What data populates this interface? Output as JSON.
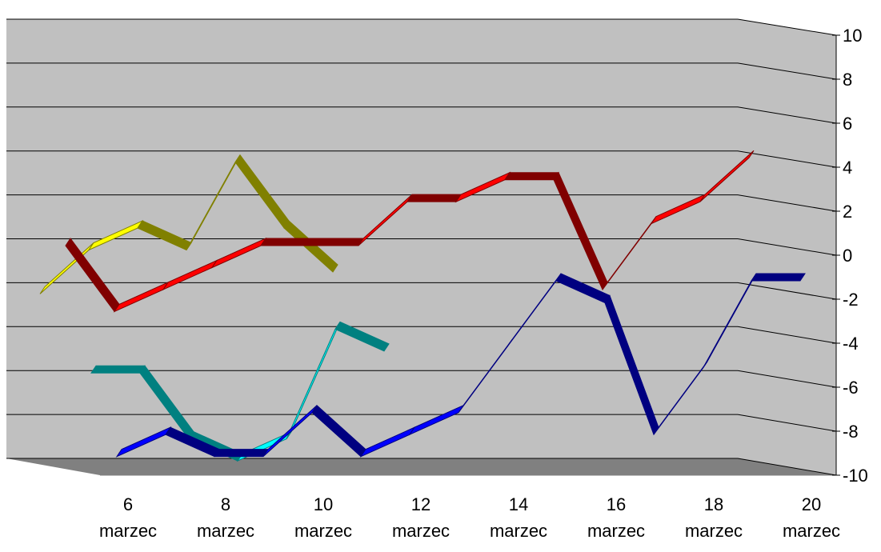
{
  "chart_data": {
    "type": "line",
    "style": "3d-ribbon",
    "ylim": [
      -10,
      10
    ],
    "yticks": [
      "10",
      "8",
      "6",
      "4",
      "2",
      "0",
      "-2",
      "-4",
      "-6",
      "-8",
      "-10"
    ],
    "yticks_values": [
      10,
      8,
      6,
      4,
      2,
      0,
      -2,
      -4,
      -6,
      -8,
      -10
    ],
    "x": [
      5,
      6,
      7,
      8,
      9,
      10,
      11,
      12,
      13,
      14,
      15,
      16,
      17,
      18,
      19,
      20
    ],
    "categories": [
      {
        "day": "6",
        "month": "marzec"
      },
      {
        "day": "8",
        "month": "marzec"
      },
      {
        "day": "10",
        "month": "marzec"
      },
      {
        "day": "12",
        "month": "marzec"
      },
      {
        "day": "14",
        "month": "marzec"
      },
      {
        "day": "16",
        "month": "marzec"
      },
      {
        "day": "18",
        "month": "marzec"
      },
      {
        "day": "20",
        "month": "marzec"
      }
    ],
    "series": [
      {
        "color": "#ffff00",
        "shade": "#808000",
        "depth": 0,
        "values": [
          -2,
          0,
          1,
          0,
          4,
          1,
          -1,
          null,
          null,
          null,
          null,
          null,
          null,
          null,
          null,
          null
        ]
      },
      {
        "color": "#ff0000",
        "shade": "#800000",
        "depth": 1,
        "values": [
          1,
          -2,
          -1,
          0,
          1,
          1,
          1,
          3,
          3,
          4,
          4,
          -1,
          2,
          3,
          5,
          null
        ]
      },
      {
        "color": "#00ffff",
        "shade": "#008080",
        "depth": 2,
        "values": [
          -4,
          -4,
          -7,
          -8,
          -7,
          -2,
          -3,
          null,
          null,
          null,
          null,
          null,
          null,
          null,
          null,
          null
        ]
      },
      {
        "color": "#0000ff",
        "shade": "#000080",
        "depth": 3,
        "values": [
          -7,
          -6,
          -7,
          -7,
          -5,
          -7,
          -6,
          -5,
          -2,
          1,
          0,
          -6,
          -3,
          1,
          1,
          null
        ]
      }
    ],
    "colors": {
      "wall": "#c0c0c0",
      "floor": "#808080",
      "grid": "#000000"
    }
  }
}
